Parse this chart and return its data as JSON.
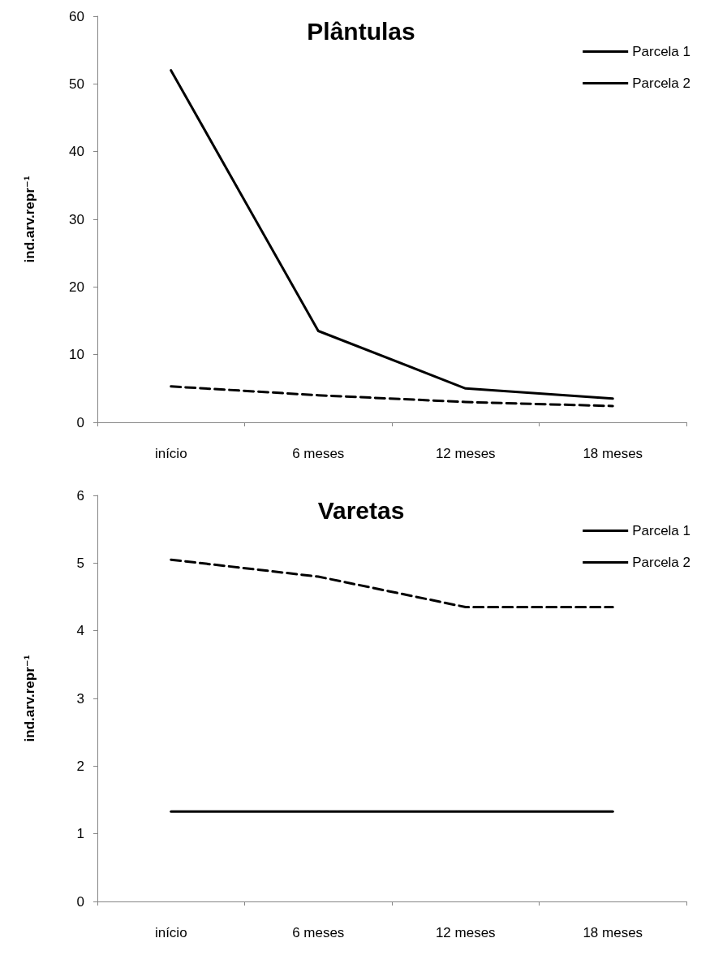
{
  "chart_data": [
    {
      "type": "line",
      "title": "Plântulas",
      "ylabel": "ind.arv.repr⁻¹",
      "categories": [
        "início",
        "6 meses",
        "12 meses",
        "18 meses"
      ],
      "ylim": [
        0,
        60
      ],
      "yticks": [
        0,
        10,
        20,
        30,
        40,
        50,
        60
      ],
      "grid": false,
      "legend": "top right",
      "marker": "none",
      "series": [
        {
          "name": "Parcela 1",
          "color": "#000000",
          "line_style": "solid",
          "values": [
            52,
            13.5,
            5,
            3.5
          ]
        },
        {
          "name": "Parcela 2",
          "color": "#000000",
          "line_style": "dashed",
          "values": [
            5.3,
            4,
            3,
            2.4
          ]
        }
      ]
    },
    {
      "type": "line",
      "title": "Varetas",
      "ylabel": "ind.arv.repr⁻¹",
      "categories": [
        "início",
        "6 meses",
        "12 meses",
        "18 meses"
      ],
      "ylim": [
        0,
        6
      ],
      "yticks": [
        0,
        1,
        2,
        3,
        4,
        5,
        6
      ],
      "grid": false,
      "legend": "top right",
      "marker": "none",
      "series": [
        {
          "name": "Parcela 1",
          "color": "#000000",
          "line_style": "solid",
          "values": [
            1.33,
            1.33,
            1.33,
            1.33
          ]
        },
        {
          "name": "Parcela 2",
          "color": "#000000",
          "line_style": "dashed",
          "values": [
            5.05,
            4.8,
            4.35,
            4.35
          ]
        }
      ]
    }
  ]
}
